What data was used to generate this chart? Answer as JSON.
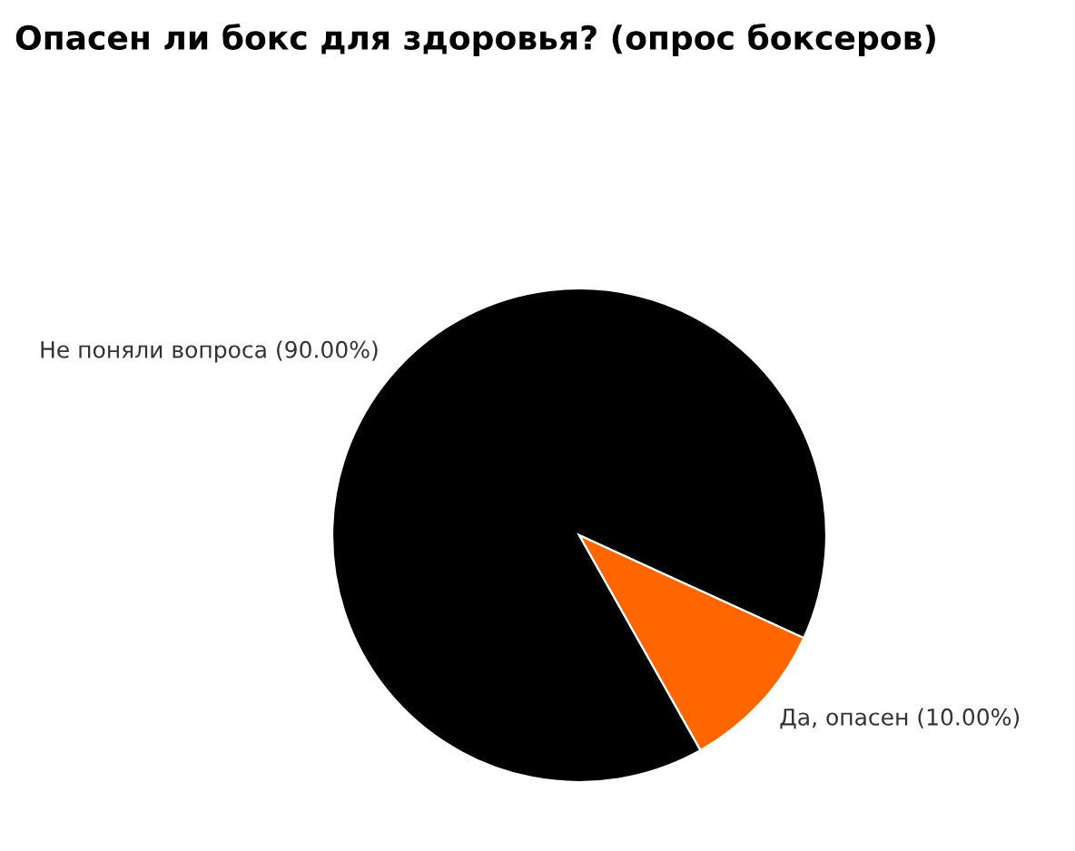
{
  "chart_data": {
    "type": "pie",
    "title": "Опасен ли бокс для здоровья? (опрос боксеров)",
    "categories": [
      "Не поняли вопроса",
      "Да, опасен"
    ],
    "values": [
      90,
      10
    ],
    "colors": [
      "#000000",
      "#ff6600"
    ],
    "value_labels": [
      "(90.00%)",
      "(10.00%)"
    ]
  }
}
